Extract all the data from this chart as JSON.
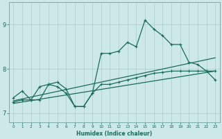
{
  "xlabel": "Humidex (Indice chaleur)",
  "bg_color": "#cce8e8",
  "line_color": "#1a6b5a",
  "grid_color": "#aacccc",
  "xlim": [
    -0.5,
    23.5
  ],
  "ylim": [
    6.8,
    9.5
  ],
  "xticks": [
    0,
    1,
    2,
    3,
    4,
    5,
    6,
    7,
    8,
    9,
    10,
    11,
    12,
    13,
    14,
    15,
    16,
    17,
    18,
    19,
    20,
    21,
    22,
    23
  ],
  "yticks": [
    7,
    8,
    9
  ],
  "line_main_x": [
    0,
    1,
    2,
    3,
    4,
    5,
    6,
    7,
    8,
    9,
    10,
    11,
    12,
    13,
    14,
    15,
    16,
    17,
    18,
    19,
    20,
    21,
    22,
    23
  ],
  "line_main_y": [
    7.35,
    7.5,
    7.3,
    7.6,
    7.65,
    7.6,
    7.45,
    7.15,
    7.15,
    7.45,
    8.35,
    8.35,
    8.4,
    8.6,
    8.5,
    9.1,
    8.9,
    8.75,
    8.55,
    8.55,
    8.15,
    8.1,
    7.95,
    7.75
  ],
  "line_low_x": [
    0,
    1,
    2,
    3,
    4,
    5,
    6,
    7,
    8,
    9,
    10,
    11,
    12,
    13,
    14,
    15,
    16,
    17,
    18,
    19,
    20,
    21,
    22,
    23
  ],
  "line_low_y": [
    7.25,
    7.3,
    7.3,
    7.3,
    7.65,
    7.7,
    7.55,
    7.15,
    7.15,
    7.45,
    7.65,
    7.65,
    7.7,
    7.75,
    7.8,
    7.85,
    7.9,
    7.92,
    7.95,
    7.95,
    7.95,
    7.95,
    7.95,
    7.95
  ],
  "line_trend1_x": [
    0,
    23
  ],
  "line_trend1_y": [
    7.28,
    8.2
  ],
  "line_trend2_x": [
    0,
    23
  ],
  "line_trend2_y": [
    7.22,
    7.95
  ]
}
